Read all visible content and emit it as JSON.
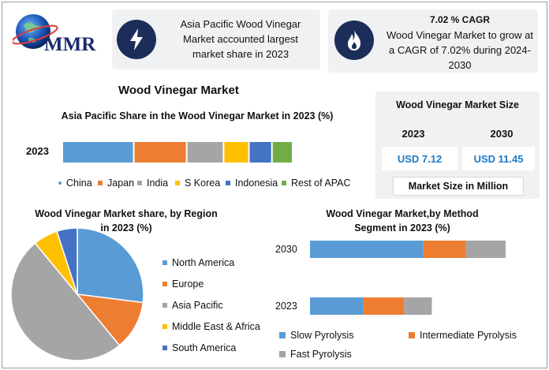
{
  "brand": {
    "logo_text": "MMR"
  },
  "info_cards": [
    {
      "icon": "lightning-icon",
      "title": "",
      "text": "Asia Pacific Wood Vinegar Market accounted largest market share in 2023"
    },
    {
      "icon": "flame-icon",
      "title": "7.02 % CAGR",
      "text": "Wood Vinegar Market to grow at a CAGR of 7.02% during 2024-2030"
    }
  ],
  "main_title": "Wood Vinegar Market",
  "market_size": {
    "title": "Wood Vinegar Market Size",
    "years": [
      "2023",
      "2030"
    ],
    "values": [
      "USD 7.12",
      "USD 11.45"
    ],
    "unit_label": "Market Size in Million"
  },
  "colors": {
    "blue": "#5b9bd5",
    "orange": "#ed7d31",
    "gray": "#a5a5a5",
    "yellow": "#ffc000",
    "darkblue": "#4472c4",
    "green": "#70ad47",
    "navy": "#1d2d5a",
    "accent_text": "#1a7ac8"
  },
  "chart_data": [
    {
      "type": "bar",
      "orientation": "horizontal",
      "stacked": true,
      "title": "Asia Pacific Share in the Wood Vinegar Market in 2023 (%)",
      "categories": [
        "2023"
      ],
      "series": [
        {
          "name": "China",
          "values": [
            31
          ],
          "color": "#5b9bd5"
        },
        {
          "name": "Japan",
          "values": [
            23
          ],
          "color": "#ed7d31"
        },
        {
          "name": "India",
          "values": [
            16
          ],
          "color": "#a5a5a5"
        },
        {
          "name": "S Korea",
          "values": [
            11
          ],
          "color": "#ffc000"
        },
        {
          "name": "Indonesia",
          "values": [
            10
          ],
          "color": "#4472c4"
        },
        {
          "name": "Rest of APAC",
          "values": [
            9
          ],
          "color": "#70ad47"
        }
      ],
      "legend": "bottom"
    },
    {
      "type": "pie",
      "title": "Wood Vinegar Market share, by Region in 2023 (%)",
      "labels": [
        "North America",
        "Europe",
        "Asia Pacific",
        "Middle East & Africa",
        "South America"
      ],
      "values": [
        27,
        12,
        50,
        6,
        5
      ],
      "colors": [
        "#5b9bd5",
        "#ed7d31",
        "#a5a5a5",
        "#ffc000",
        "#4472c4"
      ],
      "legend": "right"
    },
    {
      "type": "bar",
      "orientation": "horizontal",
      "stacked": true,
      "title": "Wood Vinegar Market,by Method Segment in 2023 (%)",
      "categories": [
        "2030",
        "2023"
      ],
      "series": [
        {
          "name": "Slow Pyrolysis",
          "values": [
            11.45,
            5.4
          ],
          "color": "#5b9bd5"
        },
        {
          "name": "Intermediate Pyrolysis",
          "values": [
            4.3,
            4.1
          ],
          "color": "#ed7d31"
        },
        {
          "name": "Fast Pyrolysis",
          "values": [
            4.0,
            2.8
          ],
          "color": "#a5a5a5"
        }
      ],
      "legend": "bottom"
    }
  ]
}
